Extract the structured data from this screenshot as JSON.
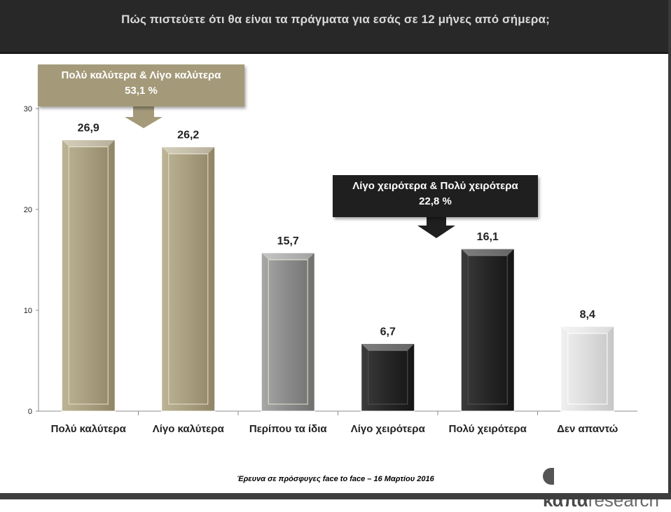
{
  "header": {
    "title": "Πώς πιστεύετε ότι θα είναι τα πράγματα για εσάς σε 12 μήνες από σήμερα;"
  },
  "callouts": {
    "better": {
      "label": "Πολύ καλύτερα & Λίγο καλύτερα",
      "value": "53,1 %"
    },
    "worse": {
      "label": "Λίγο χειρότερα & Πολύ χειρότερα",
      "value": "22,8 %"
    }
  },
  "chart_data": {
    "type": "bar",
    "title": "Πώς πιστεύετε ότι θα είναι τα πράγματα για εσάς σε 12 μήνες από σήμερα;",
    "categories": [
      "Πολύ καλύτερα",
      "Λίγο καλύτερα",
      "Περίπου τα ίδια",
      "Λίγο χειρότερα",
      "Πολύ χειρότερα",
      "Δεν απαντώ"
    ],
    "values": [
      26.9,
      26.2,
      15.7,
      6.7,
      16.1,
      8.4
    ],
    "data_labels": [
      "26,9",
      "26,2",
      "15,7",
      "6,7",
      "16,1",
      "8,4"
    ],
    "bar_colors": [
      "#a49a7a",
      "#a49a7a",
      "#8a8a8a",
      "#262626",
      "#262626",
      "#dcdcdc"
    ],
    "ylim": [
      0,
      30
    ],
    "yticks": [
      0,
      10,
      20,
      30
    ],
    "xlabel": "",
    "ylabel": "",
    "grid": false,
    "legend": "none"
  },
  "footer": {
    "note": "Έρευνα σε πρόσφυγες face to face – 16 Μαρτίου 2016",
    "logo_bold": "καπα",
    "logo_light": "research"
  }
}
